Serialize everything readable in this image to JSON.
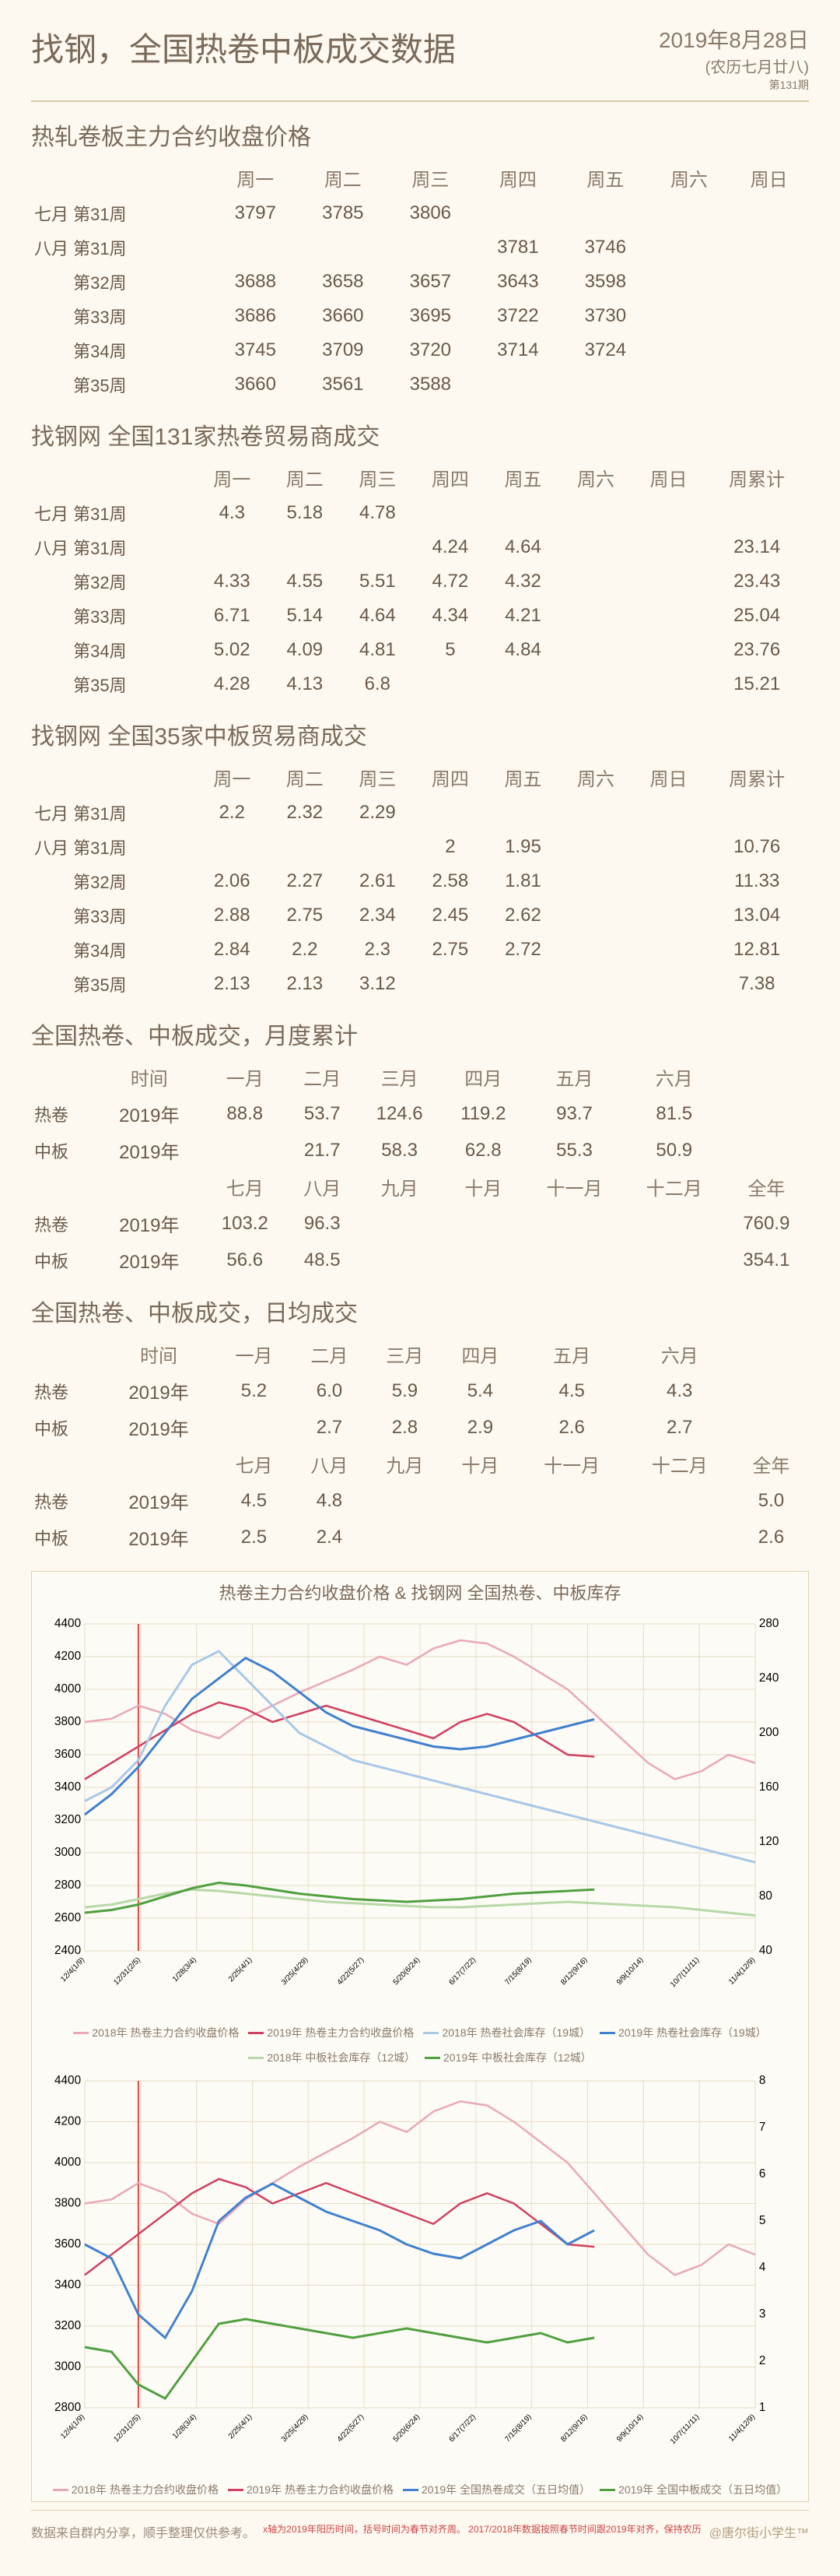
{
  "header": {
    "title": "找钢，全国热卷中板成交数据",
    "date": "2019年8月28日",
    "lunar": "(农历七月廿八)",
    "issue": "第131期"
  },
  "t1": {
    "title": "热轧卷板主力合约收盘价格",
    "cols": [
      "",
      "周一",
      "周二",
      "周三",
      "周四",
      "周五",
      "周六",
      "周日"
    ],
    "rows": [
      {
        "l": "七月 第31周",
        "c": [
          "3797",
          "3785",
          "3806",
          "",
          "",
          "",
          ""
        ]
      },
      {
        "l": "八月 第31周",
        "c": [
          "",
          "",
          "",
          "3781",
          "3746",
          "",
          ""
        ]
      },
      {
        "l": "　　 第32周",
        "c": [
          "3688",
          "3658",
          "3657",
          "3643",
          "3598",
          "",
          ""
        ]
      },
      {
        "l": "　　 第33周",
        "c": [
          "3686",
          "3660",
          "3695",
          "3722",
          "3730",
          "",
          ""
        ]
      },
      {
        "l": "　　 第34周",
        "c": [
          "3745",
          "3709",
          "3720",
          "3714",
          "3724",
          "",
          ""
        ]
      },
      {
        "l": "　　 第35周",
        "c": [
          "3660",
          "3561",
          "3588",
          "",
          "",
          "",
          ""
        ]
      }
    ]
  },
  "t2": {
    "title": "找钢网 全国131家热卷贸易商成交",
    "cols": [
      "",
      "周一",
      "周二",
      "周三",
      "周四",
      "周五",
      "周六",
      "周日",
      "周累计"
    ],
    "rows": [
      {
        "l": "七月 第31周",
        "c": [
          "4.3",
          "5.18",
          "4.78",
          "",
          "",
          "",
          "",
          ""
        ]
      },
      {
        "l": "八月 第31周",
        "c": [
          "",
          "",
          "",
          "4.24",
          "4.64",
          "",
          "",
          "23.14"
        ]
      },
      {
        "l": "　　 第32周",
        "c": [
          "4.33",
          "4.55",
          "5.51",
          "4.72",
          "4.32",
          "",
          "",
          "23.43"
        ]
      },
      {
        "l": "　　 第33周",
        "c": [
          "6.71",
          "5.14",
          "4.64",
          "4.34",
          "4.21",
          "",
          "",
          "25.04"
        ]
      },
      {
        "l": "　　 第34周",
        "c": [
          "5.02",
          "4.09",
          "4.81",
          "5",
          "4.84",
          "",
          "",
          "23.76"
        ]
      },
      {
        "l": "　　 第35周",
        "c": [
          "4.28",
          "4.13",
          "6.8",
          "",
          "",
          "",
          "",
          "15.21"
        ]
      }
    ]
  },
  "t3": {
    "title": "找钢网 全国35家中板贸易商成交",
    "cols": [
      "",
      "周一",
      "周二",
      "周三",
      "周四",
      "周五",
      "周六",
      "周日",
      "周累计"
    ],
    "rows": [
      {
        "l": "七月 第31周",
        "c": [
          "2.2",
          "2.32",
          "2.29",
          "",
          "",
          "",
          "",
          ""
        ]
      },
      {
        "l": "八月 第31周",
        "c": [
          "",
          "",
          "",
          "2",
          "1.95",
          "",
          "",
          "10.76"
        ]
      },
      {
        "l": "　　 第32周",
        "c": [
          "2.06",
          "2.27",
          "2.61",
          "2.58",
          "1.81",
          "",
          "",
          "11.33"
        ]
      },
      {
        "l": "　　 第33周",
        "c": [
          "2.88",
          "2.75",
          "2.34",
          "2.45",
          "2.62",
          "",
          "",
          "13.04"
        ]
      },
      {
        "l": "　　 第34周",
        "c": [
          "2.84",
          "2.2",
          "2.3",
          "2.75",
          "2.72",
          "",
          "",
          "12.81"
        ]
      },
      {
        "l": "　　 第35周",
        "c": [
          "2.13",
          "2.13",
          "3.12",
          "",
          "",
          "",
          "",
          "7.38"
        ]
      }
    ]
  },
  "t4": {
    "title": "全国热卷、中板成交，月度累计",
    "cols": [
      "",
      "时间",
      "一月",
      "二月",
      "三月",
      "四月",
      "五月",
      "六月",
      ""
    ],
    "rows": [
      {
        "l": "热卷",
        "c": [
          "2019年",
          "88.8",
          "53.7",
          "124.6",
          "119.2",
          "93.7",
          "81.5",
          ""
        ]
      },
      {
        "l": "中板",
        "c": [
          "2019年",
          "",
          "21.7",
          "58.3",
          "62.8",
          "55.3",
          "50.9",
          ""
        ]
      }
    ],
    "cols2": [
      "",
      "",
      "七月",
      "八月",
      "九月",
      "十月",
      "十一月",
      "十二月",
      "全年"
    ],
    "rows2": [
      {
        "l": "热卷",
        "c": [
          "2019年",
          "103.2",
          "96.3",
          "",
          "",
          "",
          "",
          "760.9"
        ]
      },
      {
        "l": "中板",
        "c": [
          "2019年",
          "56.6",
          "48.5",
          "",
          "",
          "",
          "",
          "354.1"
        ]
      }
    ]
  },
  "t5": {
    "title": "全国热卷、中板成交，日均成交",
    "cols": [
      "",
      "时间",
      "一月",
      "二月",
      "三月",
      "四月",
      "五月",
      "六月",
      ""
    ],
    "rows": [
      {
        "l": "热卷",
        "c": [
          "2019年",
          "5.2",
          "6.0",
          "5.9",
          "5.4",
          "4.5",
          "4.3",
          ""
        ]
      },
      {
        "l": "中板",
        "c": [
          "2019年",
          "",
          "2.7",
          "2.8",
          "2.9",
          "2.6",
          "2.7",
          ""
        ]
      }
    ],
    "cols2": [
      "",
      "",
      "七月",
      "八月",
      "九月",
      "十月",
      "十一月",
      "十二月",
      "全年"
    ],
    "rows2": [
      {
        "l": "热卷",
        "c": [
          "2019年",
          "4.5",
          "4.8",
          "",
          "",
          "",
          "",
          "5.0"
        ]
      },
      {
        "l": "中板",
        "c": [
          "2019年",
          "2.5",
          "2.4",
          "",
          "",
          "",
          "",
          "2.6"
        ]
      }
    ]
  },
  "chart1": {
    "title": "热卷主力合约收盘价格 & 找钢网 全国热卷、中板库存",
    "ylim": [
      2400,
      4400
    ],
    "ytick": 200,
    "y2lim": [
      40,
      280
    ],
    "y2tick": 40,
    "xlabels": [
      "12/4(1/9)",
      "12/31(2/5)",
      "1/28(3/4)",
      "2/25(4/1)",
      "3/25(4/29)",
      "4/22(5/27)",
      "5/20(6/24)",
      "6/17(7/22)",
      "7/15(8/19)",
      "8/12(9/16)",
      "9/9(10/14)",
      "10/7(11/11)",
      "11/4(12/9)"
    ],
    "vline_x": 0.08,
    "series": [
      {
        "name": "2018年 热卷主力合约收盘价格",
        "color": "#e8a8b8",
        "axis": "l",
        "data": [
          3800,
          3820,
          3900,
          3850,
          3750,
          3700,
          3820,
          3900,
          3980,
          4050,
          4120,
          4200,
          4150,
          4250,
          4300,
          4280,
          4200,
          4100,
          4000,
          3850,
          3700,
          3550,
          3450,
          3500,
          3600,
          3550
        ]
      },
      {
        "name": "2019年 热卷主力合约收盘价格",
        "color": "#d04060",
        "axis": "l",
        "data": [
          3450,
          3550,
          3650,
          3750,
          3850,
          3920,
          3880,
          3800,
          3850,
          3900,
          3850,
          3800,
          3750,
          3700,
          3800,
          3850,
          3800,
          3700,
          3600,
          3588
        ]
      },
      {
        "name": "2018年 热卷社会库存（19城）",
        "color": "#a8c8e8",
        "axis": "r",
        "data": [
          150,
          160,
          180,
          220,
          250,
          260,
          240,
          220,
          200,
          190,
          180,
          175,
          170,
          165,
          160,
          155,
          150,
          145,
          140,
          135,
          130,
          125,
          120,
          115,
          110,
          105
        ]
      },
      {
        "name": "2019年 热卷社会库存（19城）",
        "color": "#4080d0",
        "axis": "r",
        "data": [
          140,
          155,
          175,
          200,
          225,
          240,
          255,
          245,
          230,
          215,
          205,
          200,
          195,
          190,
          188,
          190,
          195,
          200,
          205,
          210
        ]
      },
      {
        "name": "2018年 中板社会库存（12城）",
        "color": "#b8d8a8",
        "axis": "r",
        "data": [
          72,
          74,
          78,
          82,
          85,
          84,
          82,
          80,
          78,
          76,
          75,
          74,
          73,
          72,
          72,
          73,
          74,
          75,
          76,
          75,
          74,
          73,
          72,
          70,
          68,
          66
        ]
      },
      {
        "name": "2019年 中板社会库存（12城）",
        "color": "#50a040",
        "axis": "r",
        "data": [
          68,
          70,
          74,
          80,
          86,
          90,
          88,
          85,
          82,
          80,
          78,
          77,
          76,
          77,
          78,
          80,
          82,
          83,
          84,
          85
        ]
      }
    ]
  },
  "chart2": {
    "ylim": [
      2800,
      4400
    ],
    "ytick": 200,
    "y2lim": [
      1,
      8
    ],
    "y2tick": 1,
    "xlabels": [
      "12/4(1/9)",
      "12/31(2/5)",
      "1/28(3/4)",
      "2/25(4/1)",
      "3/25(4/29)",
      "4/22(5/27)",
      "5/20(6/24)",
      "6/17(7/22)",
      "7/15(8/19)",
      "8/12(9/16)",
      "9/9(10/14)",
      "10/7(11/11)",
      "11/4(12/9)"
    ],
    "vline_x": 0.08,
    "series": [
      {
        "name": "2018年 热卷主力合约收盘价格",
        "color": "#e8a8b8",
        "axis": "l",
        "data": [
          3800,
          3820,
          3900,
          3850,
          3750,
          3700,
          3820,
          3900,
          3980,
          4050,
          4120,
          4200,
          4150,
          4250,
          4300,
          4280,
          4200,
          4100,
          4000,
          3850,
          3700,
          3550,
          3450,
          3500,
          3600,
          3550
        ]
      },
      {
        "name": "2019年 热卷主力合约收盘价格",
        "color": "#d04060",
        "axis": "l",
        "data": [
          3450,
          3550,
          3650,
          3750,
          3850,
          3920,
          3880,
          3800,
          3850,
          3900,
          3850,
          3800,
          3750,
          3700,
          3800,
          3850,
          3800,
          3700,
          3600,
          3588
        ]
      },
      {
        "name": "2019年 全国热卷成交（五日均值）",
        "color": "#4080d0",
        "axis": "r",
        "data": [
          4.5,
          4.2,
          3.0,
          2.5,
          3.5,
          5.0,
          5.5,
          5.8,
          5.5,
          5.2,
          5.0,
          4.8,
          4.5,
          4.3,
          4.2,
          4.5,
          4.8,
          5.0,
          4.5,
          4.8
        ]
      },
      {
        "name": "2019年 全国中板成交（五日均值）",
        "color": "#50a040",
        "axis": "r",
        "data": [
          2.3,
          2.2,
          1.5,
          1.2,
          2.0,
          2.8,
          2.9,
          2.8,
          2.7,
          2.6,
          2.5,
          2.6,
          2.7,
          2.6,
          2.5,
          2.4,
          2.5,
          2.6,
          2.4,
          2.5
        ]
      }
    ]
  },
  "footer": {
    "left": "数据来自群内分享，顺手整理仅供参考。",
    "mid": "x轴为2019年阳历时间，括号时间为春节对齐周。\n2017/2018年数据按照春节时间跟2019年对齐，保持农历",
    "right": "@唐尔街小学生™"
  }
}
